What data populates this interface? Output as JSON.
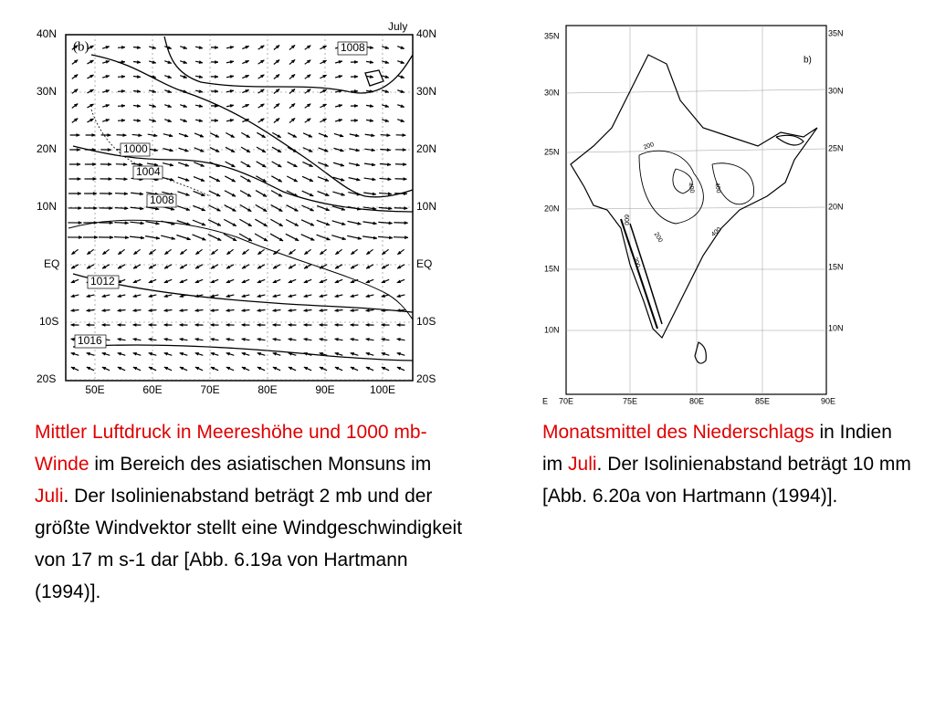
{
  "left_figure": {
    "panel_label": "(b)",
    "month": "July",
    "lat_labels_left": [
      "40N",
      "30N",
      "20N",
      "10N",
      "EQ",
      "10S",
      "20S"
    ],
    "lat_labels_right": [
      "40N",
      "30N",
      "20N",
      "10N",
      "EQ",
      "10S",
      "20S"
    ],
    "lon_labels": [
      "50E",
      "60E",
      "70E",
      "80E",
      "90E",
      "100E"
    ],
    "contour_labels": [
      "1008",
      "1000",
      "1004",
      "1008",
      "1012",
      "1016"
    ]
  },
  "right_figure": {
    "panel_label": "b)",
    "lat_labels_left": [
      "35N",
      "30N",
      "25N",
      "20N",
      "15N",
      "10N"
    ],
    "lat_labels_right": [
      "35N",
      "30N",
      "25N",
      "20N",
      "15N",
      "10N"
    ],
    "lon_labels": [
      "E",
      "70E",
      "75E",
      "80E",
      "85E",
      "90E"
    ],
    "contour_labels": [
      "200",
      "400",
      "400",
      "200",
      "400",
      "200",
      "600"
    ]
  },
  "left_caption": [
    "Mittler Luftdruck in Meereshöhe und 1000 mb-Winde",
    "im Bereich des asiatischen Monsuns im",
    "Juli",
    ". Der Isolinienabstand beträgt 2 mb und der größte Windvektor stellt eine Windgeschwindigkeit von 17 m s-1 dar [Abb. 6.19a von Hartmann (1994)]."
  ],
  "right_caption": [
    "Monatsmittel des Niederschlags",
    "in Indien im",
    "Juli",
    ". Der Isolinienabstand beträgt 10 mm [Abb. 6.20a von Hartmann (1994)]."
  ]
}
